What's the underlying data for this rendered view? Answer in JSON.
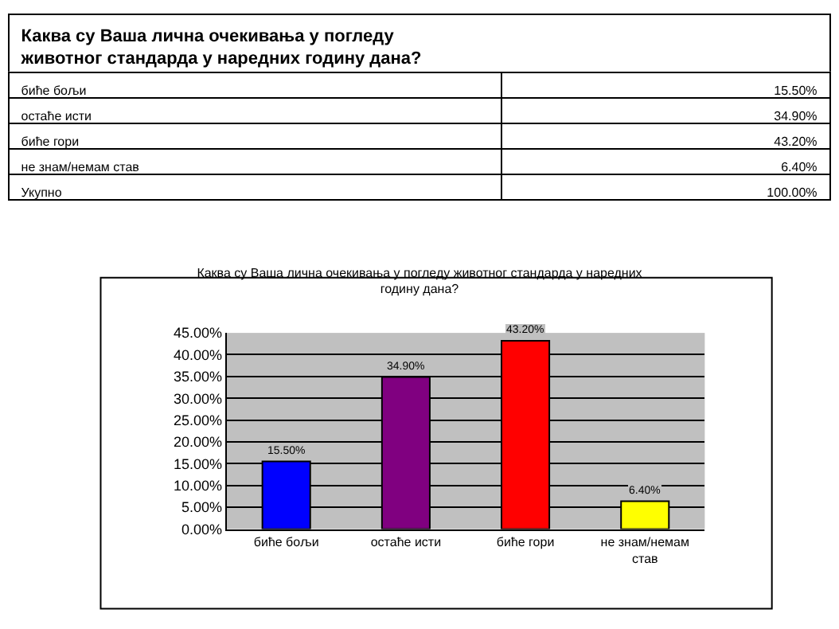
{
  "chart_data": {
    "type": "bar",
    "title": "Каква су Ваша лична очекивања у погледу животног стандарда у наредних годину дана?",
    "categories": [
      "биће бољи",
      "остаће исти",
      "биће гори",
      "не знам/немам став"
    ],
    "values": [
      15.5,
      34.9,
      43.2,
      6.4
    ],
    "colors": [
      "#0000ff",
      "#800080",
      "#ff0000",
      "#ffff00"
    ],
    "value_labels": [
      "15.50%",
      "34.90%",
      "43.20%",
      "6.40%"
    ],
    "ylim": [
      0,
      45
    ],
    "yticks": [
      {
        "value": 0,
        "label": "0.00%"
      },
      {
        "value": 5,
        "label": "5.00%"
      },
      {
        "value": 10,
        "label": "10.00%"
      },
      {
        "value": 15,
        "label": "15.00%"
      },
      {
        "value": 20,
        "label": "20.00%"
      },
      {
        "value": 25,
        "label": "25.00%"
      },
      {
        "value": 30,
        "label": "30.00%"
      },
      {
        "value": 35,
        "label": "35.00%"
      },
      {
        "value": 40,
        "label": "40.00%"
      },
      {
        "value": 45,
        "label": "45.00%"
      }
    ],
    "grid": "y",
    "legend": false,
    "annotations": [
      "Укупно",
      "100.00%"
    ]
  }
}
